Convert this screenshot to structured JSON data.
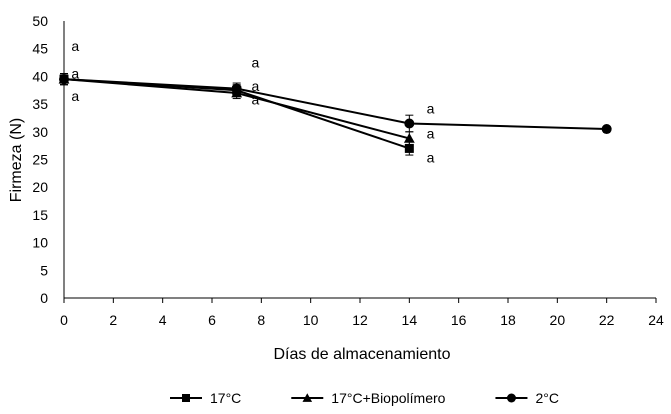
{
  "chart_data": {
    "type": "line",
    "title": "",
    "xlabel": "Días de almacenamiento",
    "ylabel": "Firmeza (N)",
    "xlim": [
      0,
      24
    ],
    "ylim": [
      0,
      50
    ],
    "xticks": [
      0,
      2,
      4,
      6,
      8,
      10,
      12,
      14,
      16,
      18,
      20,
      22,
      24
    ],
    "yticks": [
      0,
      5,
      10,
      15,
      20,
      25,
      30,
      35,
      40,
      45,
      50
    ],
    "grid": false,
    "legend_position": "bottom",
    "series": [
      {
        "name": "17°C",
        "marker": "square",
        "color": "#000000",
        "x": [
          0,
          7,
          14
        ],
        "y": [
          39.5,
          37.5,
          27.0
        ],
        "err": [
          1.0,
          1.0,
          1.2
        ]
      },
      {
        "name": "17°C+Biopolímero",
        "marker": "triangle",
        "color": "#000000",
        "x": [
          0,
          7,
          14
        ],
        "y": [
          39.5,
          37.0,
          28.8
        ],
        "err": [
          1.0,
          1.0,
          1.2
        ]
      },
      {
        "name": "2°C",
        "marker": "circle",
        "color": "#000000",
        "x": [
          0,
          7,
          14,
          22
        ],
        "y": [
          39.5,
          37.8,
          31.5,
          30.5
        ],
        "err": [
          1.0,
          1.0,
          1.5,
          0.3
        ]
      }
    ],
    "annotations": [
      {
        "text": "a",
        "x": 0.3,
        "y": 45.5
      },
      {
        "text": "a",
        "x": 0.3,
        "y": 40.5
      },
      {
        "text": "a",
        "x": 0.3,
        "y": 36.5
      },
      {
        "text": "a",
        "x": 7.6,
        "y": 42.5
      },
      {
        "text": "a",
        "x": 7.6,
        "y": 38.3
      },
      {
        "text": "a",
        "x": 7.6,
        "y": 35.8
      },
      {
        "text": "a",
        "x": 14.7,
        "y": 34.2
      },
      {
        "text": "a",
        "x": 14.7,
        "y": 29.7
      },
      {
        "text": "a",
        "x": 14.7,
        "y": 25.4
      }
    ]
  }
}
